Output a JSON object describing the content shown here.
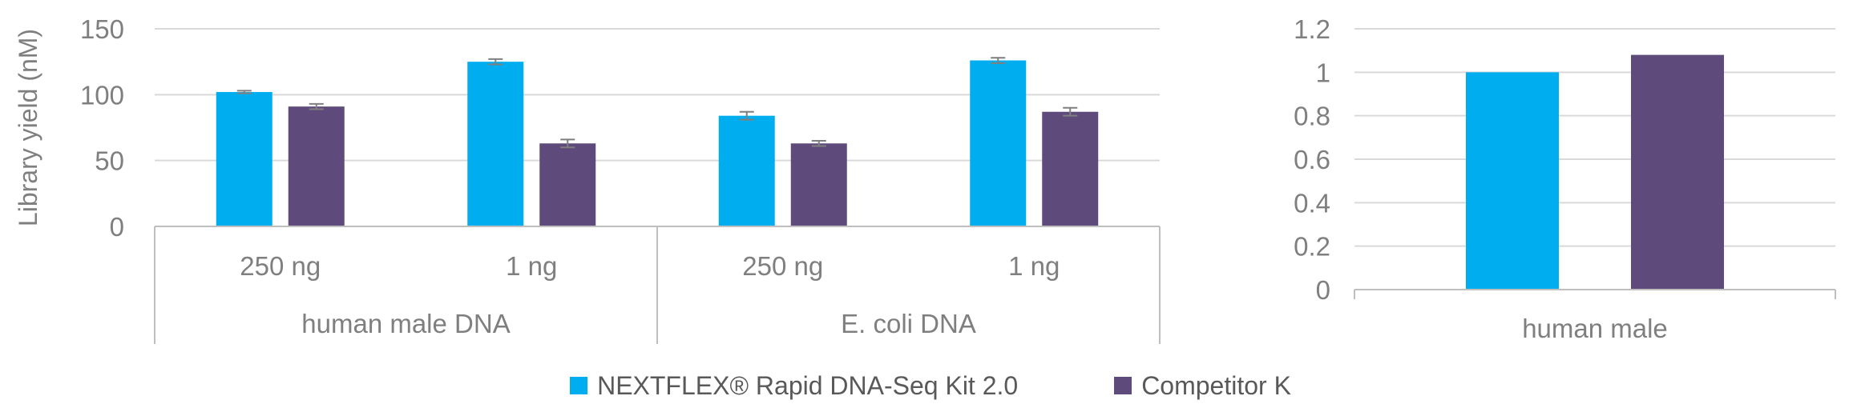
{
  "colors": {
    "series1": "#00aeef",
    "series2": "#5f4b7b",
    "grid": "#d9d9d9",
    "axis": "#bfbfbf",
    "error": "#7f7f7f"
  },
  "legend": {
    "items": [
      "NEXTFLEX® Rapid DNA-Seq Kit 2.0",
      "Competitor K"
    ]
  },
  "chart_data": [
    {
      "type": "bar",
      "ylabel": "Library yield (nM)",
      "ylim": [
        0,
        150
      ],
      "yticks": [
        0,
        50,
        100,
        150
      ],
      "grid": true,
      "groups": [
        {
          "label": "human male DNA",
          "categories": [
            "250 ng",
            "1 ng"
          ]
        },
        {
          "label": "E. coli DNA",
          "categories": [
            "250 ng",
            "1 ng"
          ]
        }
      ],
      "categories": [
        "250 ng",
        "1 ng",
        "250 ng",
        "1 ng"
      ],
      "series": [
        {
          "name": "NEXTFLEX® Rapid DNA-Seq Kit 2.0",
          "values": [
            102,
            125,
            84,
            126
          ],
          "errors": [
            1,
            2,
            3,
            2
          ]
        },
        {
          "name": "Competitor K",
          "values": [
            91,
            63,
            63,
            87
          ],
          "errors": [
            2,
            3,
            2,
            3
          ]
        }
      ]
    },
    {
      "type": "bar",
      "ylim": [
        0,
        1.2
      ],
      "yticks": [
        "0",
        "0.2",
        "0.4",
        "0.6",
        "0.8",
        "1",
        "1.2"
      ],
      "grid": true,
      "categories": [
        "human male"
      ],
      "series": [
        {
          "name": "NEXTFLEX® Rapid DNA-Seq Kit 2.0",
          "values": [
            1.0
          ]
        },
        {
          "name": "Competitor K",
          "values": [
            1.08
          ]
        }
      ]
    }
  ]
}
